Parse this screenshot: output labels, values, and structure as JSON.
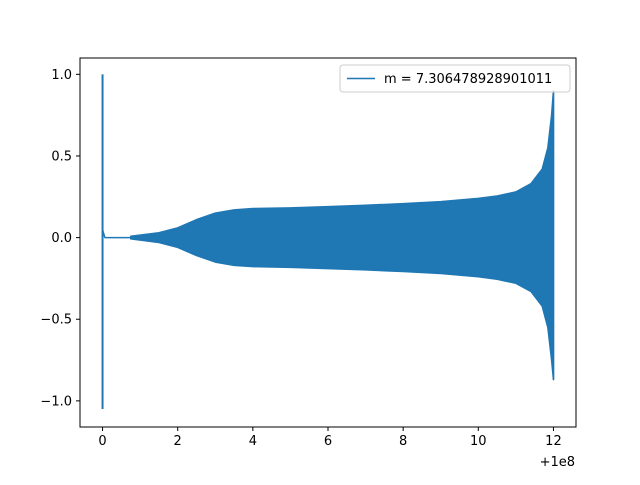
{
  "chart_data": {
    "type": "line",
    "title": "",
    "xlabel": "",
    "ylabel": "",
    "xlim": [
      -0.6,
      12.6
    ],
    "ylim": [
      -1.16,
      1.1
    ],
    "x_offset_label": "+1e8",
    "xticks": [
      0,
      2,
      4,
      6,
      8,
      10,
      12
    ],
    "xtick_labels": [
      "0",
      "2",
      "4",
      "6",
      "8",
      "10",
      "12"
    ],
    "yticks": [
      1.0,
      0.5,
      0.0,
      -0.5,
      -1.0
    ],
    "ytick_labels": [
      "1.0",
      "0.5",
      "0.0",
      "−0.5",
      "−1.0"
    ],
    "grid": false,
    "legend_position": "upper right",
    "series": [
      {
        "name": "m = 7.306478928901011",
        "color": "#1f77b4",
        "initial_spike": {
          "x": 0.0,
          "max": 1.0,
          "min": -1.05
        },
        "quiet_segment": {
          "x_start": 0.05,
          "x_end": 0.75,
          "value": 0.0
        },
        "oscillation_envelope": [
          {
            "x": 0.75,
            "amp": 0.008
          },
          {
            "x": 1.5,
            "amp": 0.03
          },
          {
            "x": 2.0,
            "amp": 0.06
          },
          {
            "x": 2.5,
            "amp": 0.11
          },
          {
            "x": 3.0,
            "amp": 0.15
          },
          {
            "x": 3.5,
            "amp": 0.17
          },
          {
            "x": 4.0,
            "amp": 0.178
          },
          {
            "x": 5.0,
            "amp": 0.182
          },
          {
            "x": 6.0,
            "amp": 0.19
          },
          {
            "x": 7.0,
            "amp": 0.198
          },
          {
            "x": 8.0,
            "amp": 0.208
          },
          {
            "x": 9.0,
            "amp": 0.22
          },
          {
            "x": 10.0,
            "amp": 0.24
          },
          {
            "x": 10.5,
            "amp": 0.255
          },
          {
            "x": 11.0,
            "amp": 0.28
          },
          {
            "x": 11.4,
            "amp": 0.33
          },
          {
            "x": 11.7,
            "amp": 0.42
          },
          {
            "x": 11.85,
            "amp": 0.55
          },
          {
            "x": 11.95,
            "amp": 0.75
          },
          {
            "x": 12.0,
            "amp": 0.9
          }
        ],
        "final_value": {
          "x": 12.0,
          "max": 0.9,
          "min": -0.87
        }
      }
    ]
  }
}
